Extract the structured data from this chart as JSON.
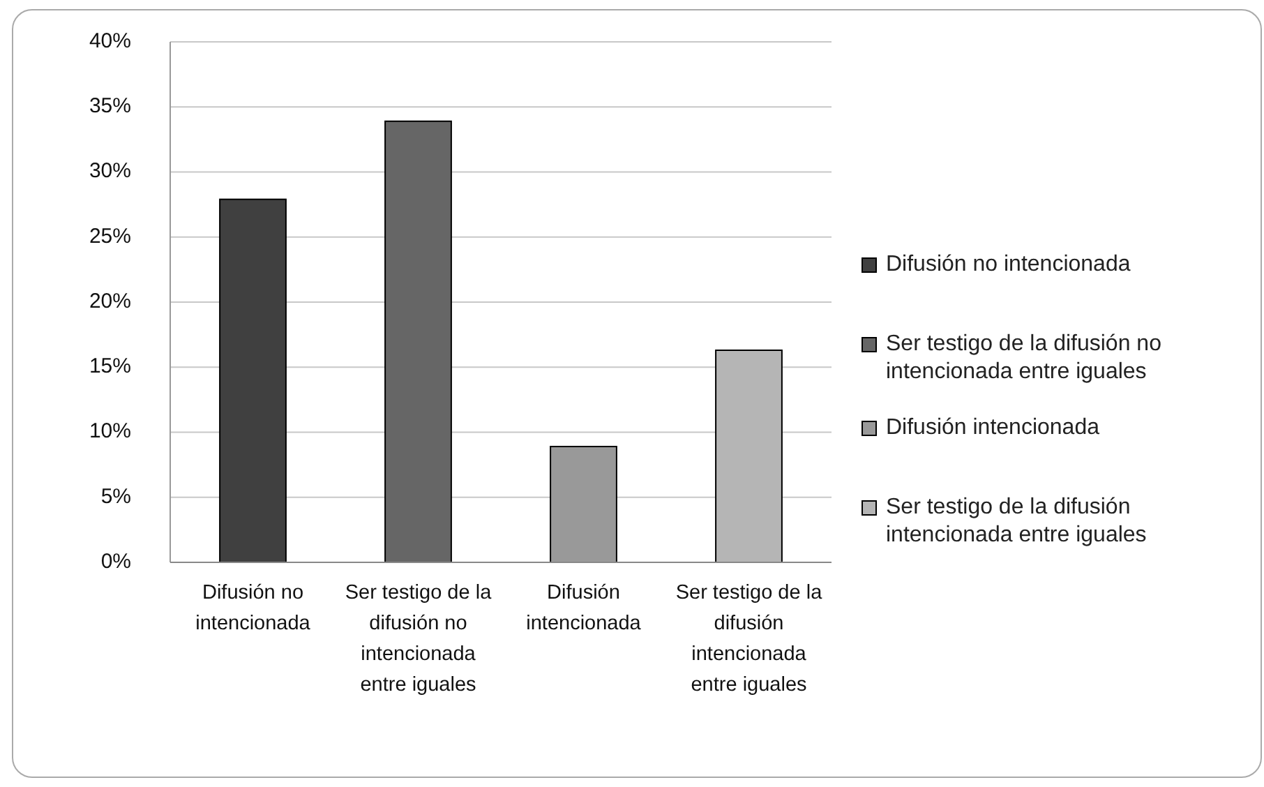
{
  "chart_data": {
    "type": "bar",
    "categories": [
      "Difusión no intencionada",
      "Ser testigo de la difusión no intencionada entre iguales",
      "Difusión intencionada",
      "Ser testigo de la difusión intencionada entre iguales"
    ],
    "series": [
      {
        "name": "Difusión no intencionada",
        "color": "#404040",
        "values": [
          27.9,
          null,
          null,
          null
        ]
      },
      {
        "name": "Ser testigo de la difusión no intencionada entre iguales",
        "color": "#666666",
        "values": [
          null,
          33.9,
          null,
          null
        ]
      },
      {
        "name": "Difusión intencionada",
        "color": "#999999",
        "values": [
          null,
          null,
          8.9,
          null
        ]
      },
      {
        "name": "Ser testigo de la difusión intencionada entre iguales",
        "color": "#b5b5b5",
        "values": [
          null,
          null,
          null,
          16.3
        ]
      }
    ],
    "ylim": [
      0,
      40
    ],
    "yticks": [
      {
        "value": 0,
        "label": "0%"
      },
      {
        "value": 5,
        "label": "5%"
      },
      {
        "value": 10,
        "label": "10%"
      },
      {
        "value": 15,
        "label": "15%"
      },
      {
        "value": 20,
        "label": "20%"
      },
      {
        "value": 25,
        "label": "25%"
      },
      {
        "value": 30,
        "label": "30%"
      },
      {
        "value": 35,
        "label": "35%"
      },
      {
        "value": 40,
        "label": "40%"
      }
    ],
    "grid": "y",
    "legend": "right"
  }
}
